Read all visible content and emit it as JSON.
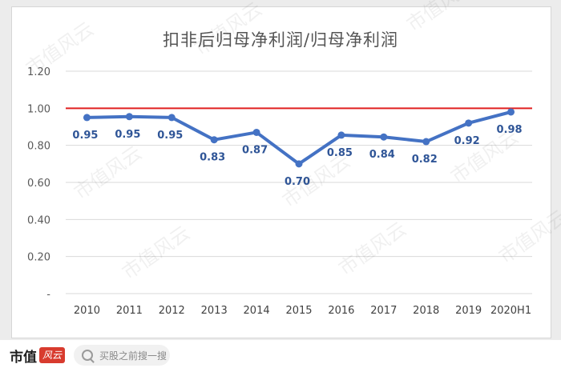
{
  "chart_data": {
    "type": "line",
    "title": "扣非后归母净利润/归母净利润",
    "categories": [
      "2010",
      "2011",
      "2012",
      "2013",
      "2014",
      "2015",
      "2016",
      "2017",
      "2018",
      "2019",
      "2020H1"
    ],
    "values": [
      0.95,
      0.955,
      0.95,
      0.83,
      0.87,
      0.7,
      0.855,
      0.845,
      0.82,
      0.92,
      0.98
    ],
    "data_labels": [
      "0.95",
      "0.95",
      "0.95",
      "0.83",
      "0.87",
      "0.70",
      "0.85",
      "0.84",
      "0.82",
      "0.92",
      "0.98"
    ],
    "ylim": [
      0,
      1.2
    ],
    "yticks": [
      0,
      0.2,
      0.4,
      0.6,
      0.8,
      1.0,
      1.2
    ],
    "ytick_labels": [
      "-",
      "0.20",
      "0.40",
      "0.60",
      "0.80",
      "1.00",
      "1.20"
    ],
    "reference_line": {
      "value": 1.0,
      "color": "#e02020"
    },
    "line_color": "#4472c4",
    "label_color": "#2f5597",
    "grid": true
  },
  "footer": {
    "brand": "市值",
    "brand_stamp": "风云",
    "search_placeholder": "买股之前搜一搜"
  },
  "watermark": "市值风云"
}
